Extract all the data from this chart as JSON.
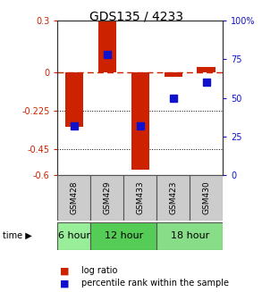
{
  "title": "GDS135 / 4233",
  "samples": [
    "GSM428",
    "GSM429",
    "GSM433",
    "GSM423",
    "GSM430"
  ],
  "log_ratios": [
    -0.32,
    0.3,
    -0.57,
    -0.03,
    0.03
  ],
  "percentile_ranks": [
    32,
    78,
    32,
    50,
    60
  ],
  "ylim_left": [
    -0.6,
    0.3
  ],
  "yticks_left": [
    0.3,
    0,
    -0.225,
    -0.45,
    -0.6
  ],
  "ytick_labels_left": [
    "0.3",
    "0",
    "-0.225",
    "-0.45",
    "-0.6"
  ],
  "ylim_right": [
    0,
    100
  ],
  "yticks_right": [
    100,
    75,
    50,
    25,
    0
  ],
  "ytick_labels_right": [
    "100%",
    "75",
    "50",
    "25",
    "0"
  ],
  "bar_color": "#cc2200",
  "dot_color": "#1111cc",
  "zero_line_color": "#cc2200",
  "grid_color": "#000000",
  "time_groups": [
    {
      "label": "6 hour",
      "start": 0,
      "end": 1,
      "color": "#99ee99"
    },
    {
      "label": "12 hour",
      "start": 1,
      "end": 3,
      "color": "#55cc55"
    },
    {
      "label": "18 hour",
      "start": 3,
      "end": 5,
      "color": "#88dd88"
    }
  ],
  "legend_bar_label": "log ratio",
  "legend_dot_label": "percentile rank within the sample",
  "bg_color": "#ffffff",
  "plot_bg_color": "#ffffff",
  "sample_area_color": "#cccccc",
  "figsize": [
    2.93,
    3.27
  ],
  "dpi": 100
}
